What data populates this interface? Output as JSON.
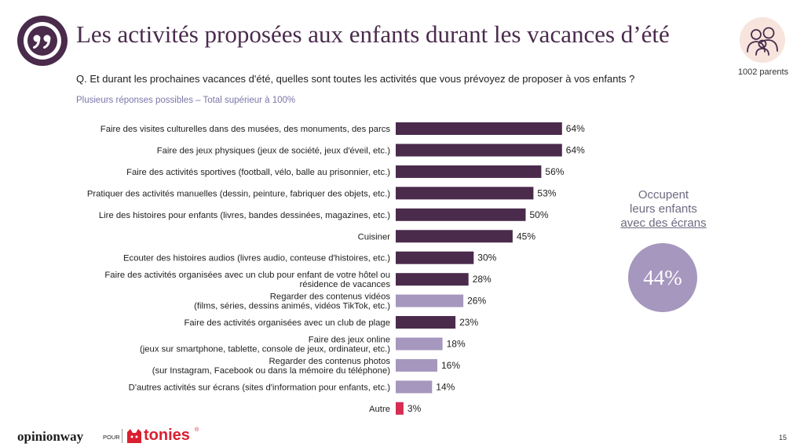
{
  "header": {
    "title": "Les activités proposées aux enfants durant les vacances d’été",
    "quote_icon": "quote-icon",
    "parents_icon": "parents-icon",
    "sample": "1002 parents"
  },
  "question": "Q. Et durant les prochaines vacances d'été, quelles sont toutes les activités que vous prévoyez de proposer à vos enfants ?",
  "note": "Plusieurs réponses possibles – Total supérieur à 100%",
  "colors": {
    "dark": "#4a2b4c",
    "screen": "#a597bd",
    "other": "#d62d52",
    "title": "#4a2b4c",
    "note": "#7b76aa"
  },
  "chart_data": {
    "type": "bar",
    "orientation": "horizontal",
    "categories": [
      "Faire des visites culturelles dans des musées, des monuments, des parcs",
      "Faire des jeux physiques (jeux de société, jeux d'éveil, etc.)",
      "Faire des activités sportives (football, vélo, balle au prisonnier, etc.)",
      "Pratiquer des activités manuelles (dessin, peinture, fabriquer des objets, etc.)",
      "Lire des histoires pour enfants (livres, bandes dessinées, magazines, etc.)",
      "Cuisiner",
      "Ecouter des histoires audios (livres audio, conteuse d'histoires, etc.)",
      "Faire des activités organisées avec un club pour enfant de votre hôtel ou résidence de vacances",
      "Regarder des contenus vidéos (films, séries, dessins animés, vidéos TikTok, etc.)",
      "Faire des activités organisées avec un club de plage",
      "Faire des jeux online (jeux sur smartphone, tablette, console de jeux, ordinateur, etc.)",
      "Regarder des contenus photos (sur Instagram, Facebook ou dans la mémoire du téléphone)",
      "D'autres activités sur écrans (sites d'information pour enfants, etc.)",
      "Autre"
    ],
    "labels": [
      [
        "Faire des visites culturelles dans des musées, des monuments, des parcs"
      ],
      [
        "Faire des jeux physiques (jeux de société, jeux d'éveil, etc.)"
      ],
      [
        "Faire des activités sportives (football, vélo, balle au prisonnier, etc.)"
      ],
      [
        "Pratiquer des activités manuelles (dessin, peinture, fabriquer des objets, etc.)"
      ],
      [
        "Lire des histoires pour enfants (livres, bandes dessinées, magazines, etc.)"
      ],
      [
        "Cuisiner"
      ],
      [
        "Ecouter des histoires audios (livres audio, conteuse d'histoires, etc.)"
      ],
      [
        "Faire des activités organisées avec un club pour enfant de votre hôtel ou",
        "résidence de vacances"
      ],
      [
        "Regarder des contenus vidéos",
        "(films, séries, dessins animés, vidéos TikTok, etc.)"
      ],
      [
        "Faire des activités organisées avec un club de plage"
      ],
      [
        "Faire des jeux online",
        "(jeux sur smartphone, tablette, console de jeux, ordinateur, etc.)"
      ],
      [
        "Regarder des contenus photos",
        "(sur Instagram, Facebook ou dans la mémoire du téléphone)"
      ],
      [
        "D'autres activités sur écrans (sites d'information pour enfants, etc.)"
      ],
      [
        "Autre"
      ]
    ],
    "values": [
      64,
      64,
      56,
      53,
      50,
      45,
      30,
      28,
      26,
      23,
      18,
      16,
      14,
      3
    ],
    "value_labels": [
      "64%",
      "64%",
      "56%",
      "53%",
      "50%",
      "45%",
      "30%",
      "28%",
      "26%",
      "23%",
      "18%",
      "16%",
      "14%",
      "3%"
    ],
    "groups": [
      "dark",
      "dark",
      "dark",
      "dark",
      "dark",
      "dark",
      "dark",
      "dark",
      "screen",
      "dark",
      "screen",
      "screen",
      "screen",
      "other"
    ],
    "xlim": [
      0,
      100
    ],
    "title": "",
    "xlabel": "",
    "ylabel": "",
    "grid": false,
    "legend": "none"
  },
  "side_panel": {
    "line1": "Occupent",
    "line2": "leurs enfants",
    "line3": "avec des écrans",
    "value": "44%"
  },
  "footer": {
    "brand": "opinionway",
    "pour": "POUR",
    "partner": "tonies",
    "partner_mark": "®",
    "partner_icon": "tonies-logo-icon",
    "page": "15"
  }
}
